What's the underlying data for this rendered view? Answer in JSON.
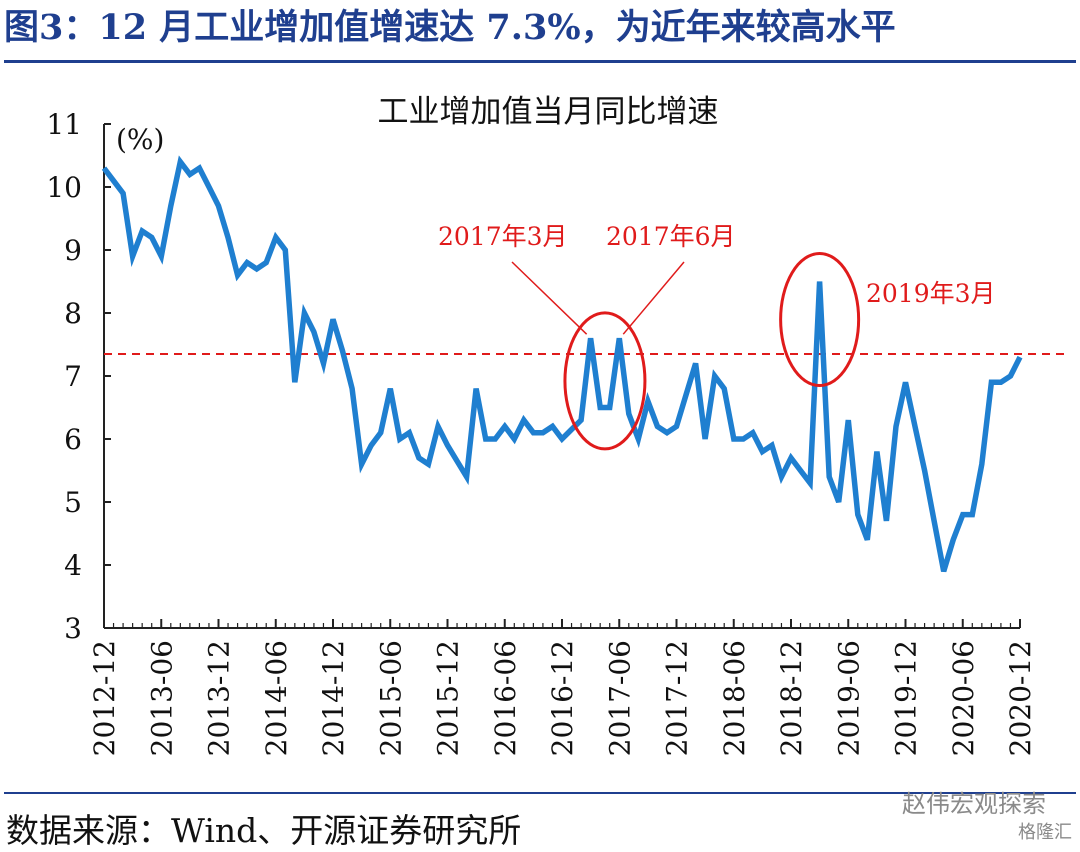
{
  "figure": {
    "title": "图3：12 月工业增加值增速达 7.3%，为近年来较高水平",
    "source": "数据来源：Wind、开源证券研究所",
    "watermark": "赵伟宏观探索",
    "watermark_sub": "格隆汇"
  },
  "colors": {
    "title": "#1f3f8f",
    "series": "#1f7fd0",
    "reference_line": "#e01b1b",
    "annotation": "#e01b1b"
  },
  "chart_data": {
    "type": "line",
    "title": "工业增加值当月同比增速",
    "unit_label": "(%)",
    "xlabel": "",
    "ylabel": "",
    "ylim": [
      3,
      11
    ],
    "yticks": [
      3,
      4,
      5,
      6,
      7,
      8,
      9,
      10,
      11
    ],
    "xticks": [
      "2012-12",
      "2013-06",
      "2013-12",
      "2014-06",
      "2014-12",
      "2015-06",
      "2015-12",
      "2016-06",
      "2016-12",
      "2017-06",
      "2017-12",
      "2018-06",
      "2018-12",
      "2019-06",
      "2019-12",
      "2020-06",
      "2020-12"
    ],
    "grid": false,
    "reference_line": {
      "y": 7.35,
      "style": "dashed"
    },
    "series": [
      {
        "x": [
          "2012-12",
          "2013-01",
          "2013-02",
          "2013-03",
          "2013-04",
          "2013-05",
          "2013-06",
          "2013-07",
          "2013-08",
          "2013-09",
          "2013-10",
          "2013-11",
          "2013-12",
          "2014-01",
          "2014-02",
          "2014-03",
          "2014-04",
          "2014-05",
          "2014-06",
          "2014-07",
          "2014-08",
          "2014-09",
          "2014-10",
          "2014-11",
          "2014-12",
          "2015-01",
          "2015-02",
          "2015-03",
          "2015-04",
          "2015-05",
          "2015-06",
          "2015-07",
          "2015-08",
          "2015-09",
          "2015-10",
          "2015-11",
          "2015-12",
          "2016-01",
          "2016-02",
          "2016-03",
          "2016-04",
          "2016-05",
          "2016-06",
          "2016-07",
          "2016-08",
          "2016-09",
          "2016-10",
          "2016-11",
          "2016-12",
          "2017-01",
          "2017-02",
          "2017-03",
          "2017-04",
          "2017-05",
          "2017-06",
          "2017-07",
          "2017-08",
          "2017-09",
          "2017-10",
          "2017-11",
          "2017-12",
          "2018-01",
          "2018-02",
          "2018-03",
          "2018-04",
          "2018-05",
          "2018-06",
          "2018-07",
          "2018-08",
          "2018-09",
          "2018-10",
          "2018-11",
          "2018-12",
          "2019-01",
          "2019-02",
          "2019-03",
          "2019-04",
          "2019-05",
          "2019-06",
          "2019-07",
          "2019-08",
          "2019-09",
          "2019-10",
          "2019-11",
          "2019-12",
          "2020-01",
          "2020-02",
          "2020-03",
          "2020-04",
          "2020-05",
          "2020-06",
          "2020-07",
          "2020-08",
          "2020-09",
          "2020-10",
          "2020-11",
          "2020-12"
        ],
        "values": [
          10.3,
          10.1,
          9.9,
          8.9,
          9.3,
          9.2,
          8.9,
          9.7,
          10.4,
          10.2,
          10.3,
          10.0,
          9.7,
          9.2,
          8.6,
          8.8,
          8.7,
          8.8,
          9.2,
          9.0,
          6.9,
          8.0,
          7.7,
          7.2,
          7.9,
          7.4,
          6.8,
          5.6,
          5.9,
          6.1,
          6.8,
          6.0,
          6.1,
          5.7,
          5.6,
          6.2,
          5.9,
          5.65,
          5.4,
          6.8,
          6.0,
          6.0,
          6.2,
          6.0,
          6.3,
          6.1,
          6.1,
          6.2,
          6.0,
          6.15,
          6.3,
          7.6,
          6.5,
          6.5,
          7.6,
          6.4,
          6.0,
          6.6,
          6.2,
          6.1,
          6.2,
          6.7,
          7.2,
          6.0,
          7.0,
          6.8,
          6.0,
          6.0,
          6.1,
          5.8,
          5.9,
          5.4,
          5.7,
          5.5,
          5.3,
          8.5,
          5.4,
          5.0,
          6.3,
          4.8,
          4.4,
          5.8,
          4.7,
          6.2,
          6.9,
          6.2,
          5.5,
          4.7,
          3.9,
          4.4,
          4.8,
          4.8,
          5.6,
          6.9,
          6.9,
          7.0,
          7.3
        ]
      }
    ],
    "annotations": [
      {
        "text": "2017年3月",
        "x": "2017-03",
        "y": 7.6
      },
      {
        "text": "2017年6月",
        "x": "2017-06",
        "y": 7.6
      },
      {
        "text": "2019年3月",
        "x": "2019-03",
        "y": 8.5
      }
    ]
  }
}
